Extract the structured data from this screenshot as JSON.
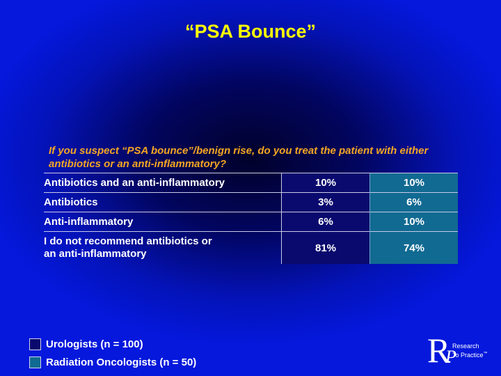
{
  "title": "“PSA Bounce”",
  "question": "If you suspect “PSA bounce”/benign rise, do you treat the patient with either antibiotics or an anti-inflammatory?",
  "colors": {
    "urologists": "#0a0a6e",
    "radiation_oncologists": "#116a92",
    "title": "#ffff00",
    "question": "#f5a623"
  },
  "rows": [
    {
      "label": "Antibiotics and an anti-inflammatory",
      "urologists": "10%",
      "radiation_oncologists": "10%"
    },
    {
      "label": "Antibiotics",
      "urologists": "3%",
      "radiation_oncologists": "6%"
    },
    {
      "label": "Anti-inflammatory",
      "urologists": "6%",
      "radiation_oncologists": "10%"
    },
    {
      "label_line1": "I do not recommend antibiotics or",
      "label_line2": "an anti-inflammatory",
      "urologists": "81%",
      "radiation_oncologists": "74%"
    }
  ],
  "legend": {
    "urologists": "Urologists  (n = 100)",
    "radiation_oncologists": "Radiation Oncologists  (n = 50)"
  },
  "logo": {
    "line1": "Research",
    "line2": "To Practice",
    "mark": "™"
  }
}
